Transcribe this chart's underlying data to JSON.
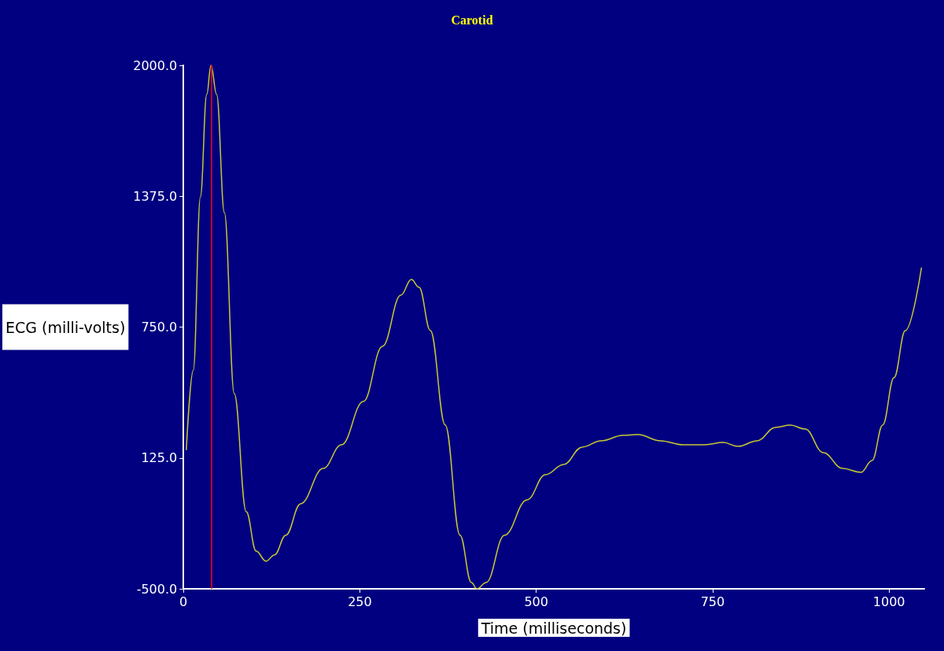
{
  "chart_data": {
    "type": "line",
    "title": "Carotid",
    "xlabel": "Time (milliseconds)",
    "ylabel": "ECG (milli-volts)",
    "x": [
      4,
      14,
      24,
      33,
      39,
      47,
      58,
      72,
      89,
      103,
      117,
      129,
      145,
      166,
      198,
      224,
      255,
      282,
      308,
      323,
      334,
      350,
      371,
      392,
      408,
      416,
      429,
      455,
      487,
      513,
      539,
      565,
      592,
      623,
      644,
      676,
      708,
      739,
      765,
      786,
      813,
      839,
      860,
      881,
      907,
      934,
      960,
      976,
      991,
      1007,
      1023,
      1046
    ],
    "series": [
      {
        "color": "#c8c832",
        "values": [
          162,
          545,
          1372,
          1861,
          2000,
          1861,
          1297,
          432,
          -132,
          -320,
          -368,
          -338,
          -244,
          -94,
          75,
          188,
          395,
          658,
          902,
          977,
          940,
          733,
          282,
          -244,
          -470,
          -500,
          -470,
          -244,
          -75,
          45,
          94,
          177,
          207,
          233,
          237,
          207,
          188,
          188,
          199,
          180,
          207,
          271,
          282,
          263,
          150,
          75,
          56,
          113,
          282,
          508,
          733,
          1034
        ]
      }
    ],
    "xlim": [
      0,
      1050
    ],
    "xticks": [
      0,
      250,
      500,
      750,
      1000
    ],
    "ylim": [
      -500,
      2000
    ],
    "yticks": [
      {
        "value": -500,
        "label": "-500.0"
      },
      {
        "value": 125,
        "label": "125.0"
      },
      {
        "value": 750,
        "label": "750.0"
      },
      {
        "value": 1375,
        "label": "1375.0"
      },
      {
        "value": 2000,
        "label": "2000.0"
      }
    ],
    "ref_lines": [
      {
        "axis": "x",
        "value": 40,
        "color": "#ff0000"
      }
    ],
    "grid": false
  }
}
